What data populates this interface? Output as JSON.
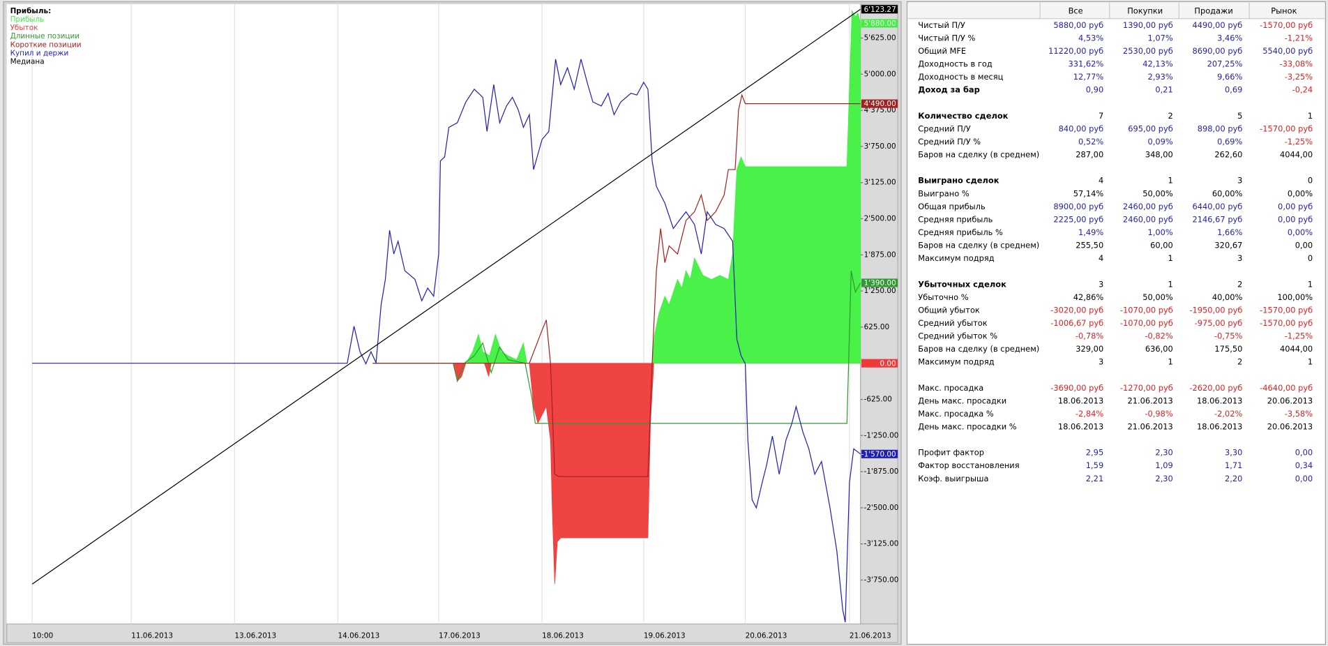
{
  "chart_data": {
    "type": "line",
    "legend_title": "Прибыль:",
    "grid": "x",
    "xlim": [
      0,
      1008
    ],
    "ylim": [
      -4510,
      6210
    ],
    "xticks": [
      {
        "value": 30,
        "label": "10:00"
      },
      {
        "value": 147,
        "label": "11.06.2013"
      },
      {
        "value": 269,
        "label": "13.06.2013"
      },
      {
        "value": 391,
        "label": "14.06.2013"
      },
      {
        "value": 510,
        "label": "17.06.2013"
      },
      {
        "value": 632,
        "label": "18.06.2013"
      },
      {
        "value": 752,
        "label": "19.06.2013"
      },
      {
        "value": 872,
        "label": "20.06.2013"
      },
      {
        "value": 995,
        "label": "21.06.2013"
      }
    ],
    "yticks": [
      {
        "value": 5625,
        "label": "5'625.00"
      },
      {
        "value": 5000,
        "label": "5'000.00"
      },
      {
        "value": 4375,
        "label": "4'375.00"
      },
      {
        "value": 3750,
        "label": "3'750.00"
      },
      {
        "value": 3125,
        "label": "3'125.00"
      },
      {
        "value": 2500,
        "label": "2'500.00"
      },
      {
        "value": 1875,
        "label": "1'875.00"
      },
      {
        "value": 1250,
        "label": "1'250.00"
      },
      {
        "value": 625,
        "label": "625.00"
      },
      {
        "value": -625,
        "label": "-625.00"
      },
      {
        "value": -1250,
        "label": "-1'250.00"
      },
      {
        "value": -1875,
        "label": "-1'875.00"
      },
      {
        "value": -2500,
        "label": "-2'500.00"
      },
      {
        "value": -3125,
        "label": "-3'125.00"
      },
      {
        "value": -3750,
        "label": "-3'750.00"
      }
    ],
    "series": [
      {
        "name": "Прибыль",
        "type": "area",
        "color": "#3ff03f",
        "end_label": "5'880.00",
        "x": [
          542,
          550,
          557,
          562,
          570,
          577,
          584,
          592,
          602,
          610,
          614,
          null,
          762,
          765,
          770,
          777,
          782,
          787,
          792,
          797,
          802,
          807,
          812,
          817,
          822,
          832,
          842,
          852,
          857,
          862,
          867,
          872,
          992,
          995,
          998,
          1002,
          1005,
          1008
        ],
        "values": [
          0,
          200,
          500,
          200,
          130,
          500,
          200,
          130,
          60,
          350,
          0,
          null,
          0,
          500,
          860,
          1160,
          1010,
          1230,
          1450,
          1300,
          1600,
          1450,
          1820,
          1670,
          1520,
          1450,
          1520,
          1450,
          1890,
          3350,
          3570,
          3400,
          3400,
          4820,
          6100,
          5990,
          6060,
          5880
        ]
      },
      {
        "name": "Убыток",
        "type": "area",
        "color": "#ef3a3a",
        "end_label": "0.00",
        "x": [
          527,
          532,
          537,
          542,
          null,
          564,
          569,
          572,
          null,
          617,
          622,
          627,
          637,
          642,
          644,
          647,
          650,
          654,
          757,
          760,
          764,
          null,
          1008
        ],
        "values": [
          0,
          -310,
          -230,
          0,
          null,
          0,
          -230,
          0,
          null,
          0,
          -750,
          -1040,
          -750,
          -1330,
          -2500,
          -3820,
          -3090,
          -3020,
          -3020,
          -1040,
          0,
          null,
          0
        ]
      },
      {
        "name": "Длинные позиции",
        "type": "line",
        "color": "#2f9a2f",
        "end_label": "1'390.00",
        "x": [
          432,
          527,
          532,
          540,
          552,
          562,
          572,
          582,
          592,
          612,
          620,
          624,
          992,
          997,
          1002,
          1008
        ],
        "values": [
          0,
          0,
          -310,
          0,
          130,
          350,
          -160,
          280,
          60,
          0,
          -600,
          -1040,
          -1040,
          1600,
          1230,
          1390
        ]
      },
      {
        "name": "Короткие позиции",
        "type": "line",
        "color": "#a32020",
        "end_label": "4'490.00",
        "x": [
          432,
          617,
          632,
          637,
          642,
          647,
          652,
          757,
          762,
          767,
          772,
          777,
          782,
          792,
          802,
          812,
          820,
          827,
          837,
          847,
          852,
          860,
          864,
          868,
          872,
          1008
        ],
        "values": [
          0,
          0,
          570,
          750,
          0,
          -1920,
          -1960,
          -1960,
          0,
          1600,
          2330,
          1740,
          2030,
          1890,
          2470,
          2620,
          2910,
          2470,
          2620,
          2910,
          3350,
          3350,
          4380,
          4640,
          4490,
          4490
        ]
      },
      {
        "name": "Купил и держи",
        "type": "line",
        "color": "#1f1fb4",
        "end_label": "-1'570.00",
        "x": [
          30,
          402,
          410,
          417,
          424,
          430,
          436,
          442,
          447,
          452,
          457,
          462,
          470,
          482,
          490,
          497,
          504,
          510,
          512,
          517,
          522,
          532,
          542,
          552,
          562,
          567,
          575,
          582,
          590,
          597,
          604,
          610,
          617,
          622,
          632,
          640,
          648,
          654,
          662,
          670,
          678,
          686,
          692,
          702,
          710,
          717,
          725,
          737,
          744,
          752,
          757,
          762,
          767,
          777,
          787,
          794,
          802,
          812,
          820,
          827,
          837,
          847,
          857,
          862,
          867,
          872,
          875,
          880,
          885,
          892,
          897,
          904,
          912,
          920,
          927,
          932,
          940,
          947,
          954,
          962,
          972,
          980,
          987,
          990,
          995,
          1000,
          1008
        ],
        "values": [
          0,
          0,
          640,
          200,
          -10,
          200,
          10,
          1010,
          1450,
          2300,
          1890,
          2110,
          1600,
          1450,
          1080,
          1300,
          1160,
          1890,
          3500,
          3570,
          4080,
          4160,
          4520,
          4740,
          4600,
          4010,
          4820,
          4160,
          4450,
          4600,
          4380,
          4080,
          4300,
          3350,
          3870,
          4010,
          5260,
          4820,
          5110,
          4740,
          5260,
          4820,
          4520,
          4450,
          4670,
          4300,
          4520,
          4670,
          4640,
          4860,
          4740,
          3500,
          3060,
          2770,
          2330,
          2470,
          2620,
          2400,
          1890,
          2620,
          2400,
          2330,
          2110,
          420,
          130,
          -10,
          -1330,
          -2360,
          -2500,
          -2060,
          -1770,
          -1260,
          -1920,
          -1330,
          -1040,
          -750,
          -1190,
          -1480,
          -1920,
          -1700,
          -2500,
          -3240,
          -4260,
          -4480,
          -2060,
          -1480,
          -1570
        ]
      },
      {
        "name": "Медиана",
        "type": "line",
        "color": "#000000",
        "end_label": "6'123.27",
        "x": [
          30,
          1008
        ],
        "values": [
          -3820,
          6123.27
        ]
      }
    ]
  },
  "table": {
    "columns": [
      "Все",
      "Покупки",
      "Продажи",
      "Рынок"
    ],
    "sections": [
      {
        "rows": [
          {
            "label": "Чистый П/У",
            "color": "#2323b0",
            "values": [
              "5880,00 руб",
              "1390,00 руб",
              "4490,00 руб",
              "-1570,00 руб"
            ]
          },
          {
            "label": "Чистый П/У %",
            "color": "#2323b0",
            "values": [
              "4,53%",
              "1,07%",
              "3,46%",
              "-1,21%"
            ]
          },
          {
            "label": "Общий MFE",
            "color": "#2323b0",
            "values": [
              "11220,00 руб",
              "2530,00 руб",
              "8690,00 руб",
              "5540,00 руб"
            ]
          },
          {
            "label": "Доходность в год",
            "color": "#2323b0",
            "values": [
              "331,62%",
              "42,13%",
              "207,25%",
              "-33,08%"
            ]
          },
          {
            "label": "Доходность в месяц",
            "color": "#2323b0",
            "values": [
              "12,77%",
              "2,93%",
              "9,66%",
              "-3,25%"
            ]
          },
          {
            "label": "Доход за бар",
            "color": "#2323b0",
            "bold": true,
            "values": [
              "0,90",
              "0,21",
              "0,69",
              "-0,24"
            ]
          }
        ]
      },
      {
        "rows": [
          {
            "label": "Количество сделок",
            "color": "#000000",
            "bold": true,
            "values": [
              "7",
              "2",
              "5",
              "1"
            ]
          },
          {
            "label": "Средний П/У",
            "color": "#2323b0",
            "values": [
              "840,00 руб",
              "695,00 руб",
              "898,00 руб",
              "-1570,00 руб"
            ]
          },
          {
            "label": "Средний П/У %",
            "color": "#2323b0",
            "values": [
              "0,52%",
              "0,09%",
              "0,69%",
              "-1,25%"
            ]
          },
          {
            "label": "Баров на сделку (в среднем)",
            "color": "#000000",
            "values": [
              "287,00",
              "348,00",
              "262,60",
              "4044,00"
            ]
          }
        ]
      },
      {
        "rows": [
          {
            "label": "Выиграно сделок",
            "color": "#000000",
            "bold": true,
            "values": [
              "4",
              "1",
              "3",
              "0"
            ]
          },
          {
            "label": "Выиграно %",
            "color": "#000000",
            "values": [
              "57,14%",
              "50,00%",
              "60,00%",
              "0,00%"
            ]
          },
          {
            "label": "Общая прибыль",
            "color": "#2323b0",
            "values": [
              "8900,00 руб",
              "2460,00 руб",
              "6440,00 руб",
              "0,00 руб"
            ]
          },
          {
            "label": "Средняя прибыль",
            "color": "#2323b0",
            "values": [
              "2225,00 руб",
              "2460,00 руб",
              "2146,67 руб",
              "0,00 руб"
            ]
          },
          {
            "label": "Средняя прибыль %",
            "color": "#2323b0",
            "values": [
              "1,49%",
              "1,00%",
              "1,66%",
              "0,00%"
            ]
          },
          {
            "label": "Баров на сделку (в среднем)",
            "color": "#000000",
            "values": [
              "255,50",
              "60,00",
              "320,67",
              "0,00"
            ]
          },
          {
            "label": "Максимум подряд",
            "color": "#000000",
            "values": [
              "4",
              "1",
              "3",
              "0"
            ]
          }
        ]
      },
      {
        "rows": [
          {
            "label": "Убыточных сделок",
            "color": "#000000",
            "bold": true,
            "values": [
              "3",
              "1",
              "2",
              "1"
            ]
          },
          {
            "label": "Убыточно %",
            "color": "#000000",
            "values": [
              "42,86%",
              "50,00%",
              "40,00%",
              "100,00%"
            ]
          },
          {
            "label": "Общий убыток",
            "color": "#e02020",
            "values": [
              "-3020,00 руб",
              "-1070,00 руб",
              "-1950,00 руб",
              "-1570,00 руб"
            ]
          },
          {
            "label": "Средний убыток",
            "color": "#e02020",
            "values": [
              "-1006,67 руб",
              "-1070,00 руб",
              "-975,00 руб",
              "-1570,00 руб"
            ]
          },
          {
            "label": "Средний убыток %",
            "color": "#e02020",
            "values": [
              "-0,78%",
              "-0,82%",
              "-0,75%",
              "-1,25%"
            ]
          },
          {
            "label": "Баров на сделку (в среднем)",
            "color": "#000000",
            "values": [
              "329,00",
              "636,00",
              "175,50",
              "4044,00"
            ]
          },
          {
            "label": "Максимум подряд",
            "color": "#000000",
            "values": [
              "3",
              "1",
              "2",
              "1"
            ]
          }
        ]
      },
      {
        "rows": [
          {
            "label": "Макс. просадка",
            "color": "#e02020",
            "values": [
              "-3690,00 руб",
              "-1270,00 руб",
              "-2620,00 руб",
              "-4640,00 руб"
            ]
          },
          {
            "label": "День макс. просадки",
            "color": "#000000",
            "values": [
              "18.06.2013",
              "21.06.2013",
              "18.06.2013",
              "20.06.2013"
            ]
          },
          {
            "label": "Макс. просадка %",
            "color": "#e02020",
            "values": [
              "-2,84%",
              "-0,98%",
              "-2,02%",
              "-3,58%"
            ]
          },
          {
            "label": "День макс. просадки %",
            "color": "#000000",
            "values": [
              "18.06.2013",
              "21.06.2013",
              "18.06.2013",
              "20.06.2013"
            ]
          }
        ]
      },
      {
        "rows": [
          {
            "label": "Профит фактор",
            "color": "#2323b0",
            "values": [
              "2,95",
              "2,30",
              "3,30",
              "0,00"
            ]
          },
          {
            "label": "Фактор восстановления",
            "color": "#2323b0",
            "values": [
              "1,59",
              "1,09",
              "1,71",
              "0,34"
            ]
          },
          {
            "label": "Коэф. выигрыша",
            "color": "#2323b0",
            "values": [
              "2,21",
              "2,30",
              "2,20",
              "0,00"
            ]
          }
        ]
      }
    ]
  }
}
